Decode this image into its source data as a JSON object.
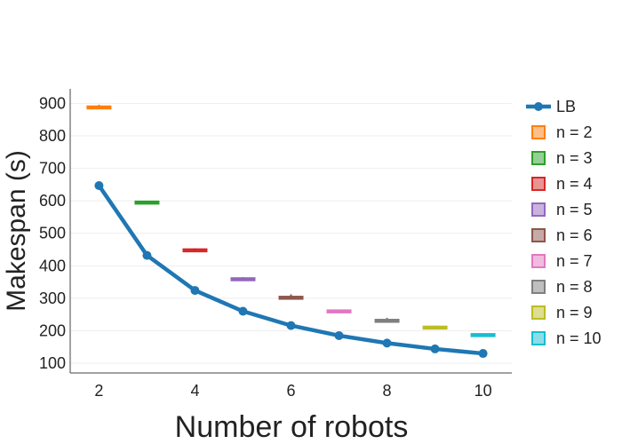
{
  "chart_data": {
    "type": "box",
    "xlabel": "Number of robots",
    "ylabel": "Makespan (s)",
    "xlim": [
      1.4,
      10.6
    ],
    "ylim": [
      70,
      945
    ],
    "xticks": [
      2,
      4,
      6,
      8,
      10
    ],
    "yticks": [
      100,
      200,
      300,
      400,
      500,
      600,
      700,
      800,
      900
    ],
    "grid": "horizontal",
    "legend_position": "right",
    "lb_series": {
      "name": "LB",
      "color": "#1f77b4",
      "x": [
        2,
        3,
        4,
        5,
        6,
        7,
        8,
        9,
        10
      ],
      "y": [
        647,
        432,
        324,
        260,
        216,
        185,
        162,
        144,
        130
      ]
    },
    "boxes": [
      {
        "name": "n = 2",
        "x": 2,
        "min": 883,
        "q1": 886,
        "median": 888,
        "q3": 891,
        "max": 896,
        "color": "#ff7f0e"
      },
      {
        "name": "n = 3",
        "x": 3,
        "min": 592,
        "q1": 594,
        "median": 596,
        "q3": 598,
        "max": 600,
        "color": "#2ca02c"
      },
      {
        "name": "n = 4",
        "x": 4,
        "min": 445,
        "q1": 447,
        "median": 449,
        "q3": 451,
        "max": 454,
        "color": "#d62728"
      },
      {
        "name": "n = 5",
        "x": 5,
        "min": 356,
        "q1": 358,
        "median": 360,
        "q3": 362,
        "max": 365,
        "color": "#9467bd"
      },
      {
        "name": "n = 6",
        "x": 6,
        "min": 299,
        "q1": 301,
        "median": 303,
        "q3": 305,
        "max": 312,
        "color": "#8c564b"
      },
      {
        "name": "n = 7",
        "x": 7,
        "min": 257,
        "q1": 259,
        "median": 261,
        "q3": 263,
        "max": 265,
        "color": "#e377c2"
      },
      {
        "name": "n = 8",
        "x": 8,
        "min": 226,
        "q1": 228,
        "median": 231,
        "q3": 234,
        "max": 240,
        "color": "#7f7f7f"
      },
      {
        "name": "n = 9",
        "x": 9,
        "min": 206,
        "q1": 208,
        "median": 210,
        "q3": 213,
        "max": 216,
        "color": "#bcbd22"
      },
      {
        "name": "n = 10",
        "x": 10,
        "min": 185,
        "q1": 187,
        "median": 188,
        "q3": 190,
        "max": 192,
        "color": "#17becf"
      }
    ]
  }
}
